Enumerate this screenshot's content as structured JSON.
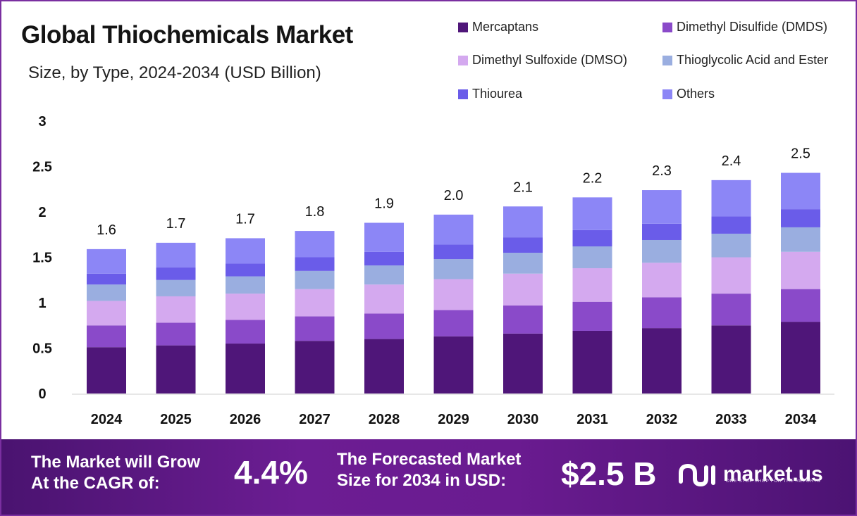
{
  "title": "Global Thiochemicals Market",
  "subtitle": "Size, by Type, 2024-2034 (USD Billion)",
  "legend": [
    {
      "label": "Mercaptans",
      "color": "#4f1679"
    },
    {
      "label": "Dimethyl Disulfide (DMDS)",
      "color": "#8a4ac9"
    },
    {
      "label": "Dimethyl Sulfoxide (DMSO)",
      "color": "#d4a9ef"
    },
    {
      "label": "Thioglycolic Acid and Ester",
      "color": "#9aaee0"
    },
    {
      "label": "Thiourea",
      "color": "#6a5ce9"
    },
    {
      "label": "Others",
      "color": "#8c86f6"
    }
  ],
  "chart_data": {
    "type": "bar",
    "stacked": true,
    "title": "Global Thiochemicals Market",
    "subtitle": "Size, by Type, 2024-2034 (USD Billion)",
    "categories": [
      "2024",
      "2025",
      "2026",
      "2027",
      "2028",
      "2029",
      "2030",
      "2031",
      "2032",
      "2033",
      "2034"
    ],
    "totals": [
      "1.6",
      "1.7",
      "1.7",
      "1.8",
      "1.9",
      "2.0",
      "2.1",
      "2.2",
      "2.3",
      "2.4",
      "2.5"
    ],
    "ylim": [
      0,
      3
    ],
    "yticks": [
      "0",
      "0.5",
      "1",
      "1.5",
      "2",
      "2.5",
      "3"
    ],
    "grid": false,
    "legend_position": "top-right",
    "series": [
      {
        "name": "Mercaptans",
        "color": "#4f1679",
        "values": [
          0.51,
          0.53,
          0.55,
          0.58,
          0.6,
          0.63,
          0.66,
          0.69,
          0.72,
          0.75,
          0.79
        ]
      },
      {
        "name": "Dimethyl Disulfide (DMDS)",
        "color": "#8a4ac9",
        "values": [
          0.24,
          0.25,
          0.26,
          0.27,
          0.28,
          0.29,
          0.31,
          0.32,
          0.34,
          0.35,
          0.36
        ]
      },
      {
        "name": "Dimethyl Sulfoxide (DMSO)",
        "color": "#d4a9ef",
        "values": [
          0.27,
          0.29,
          0.29,
          0.3,
          0.32,
          0.34,
          0.35,
          0.37,
          0.38,
          0.4,
          0.41
        ]
      },
      {
        "name": "Thioglycolic Acid and Ester",
        "color": "#9aaee0",
        "values": [
          0.18,
          0.18,
          0.19,
          0.2,
          0.21,
          0.22,
          0.23,
          0.24,
          0.25,
          0.26,
          0.27
        ]
      },
      {
        "name": "Thiourea",
        "color": "#6a5ce9",
        "values": [
          0.12,
          0.14,
          0.14,
          0.15,
          0.15,
          0.16,
          0.17,
          0.18,
          0.18,
          0.19,
          0.2
        ]
      },
      {
        "name": "Others",
        "color": "#8c86f6",
        "values": [
          0.27,
          0.27,
          0.28,
          0.29,
          0.32,
          0.33,
          0.34,
          0.36,
          0.37,
          0.4,
          0.4
        ]
      }
    ]
  },
  "banner": {
    "cagr_text_line1": "The Market will Grow",
    "cagr_text_line2": "At the CAGR of:",
    "cagr_value": "4.4%",
    "forecast_text_line1": "The Forecasted Market",
    "forecast_text_line2": "Size for 2034 in USD:",
    "forecast_value": "$2.5 B",
    "logo_text": "market.us",
    "logo_tagline": "ONE STOP SHOP FOR THE REPORTS"
  }
}
